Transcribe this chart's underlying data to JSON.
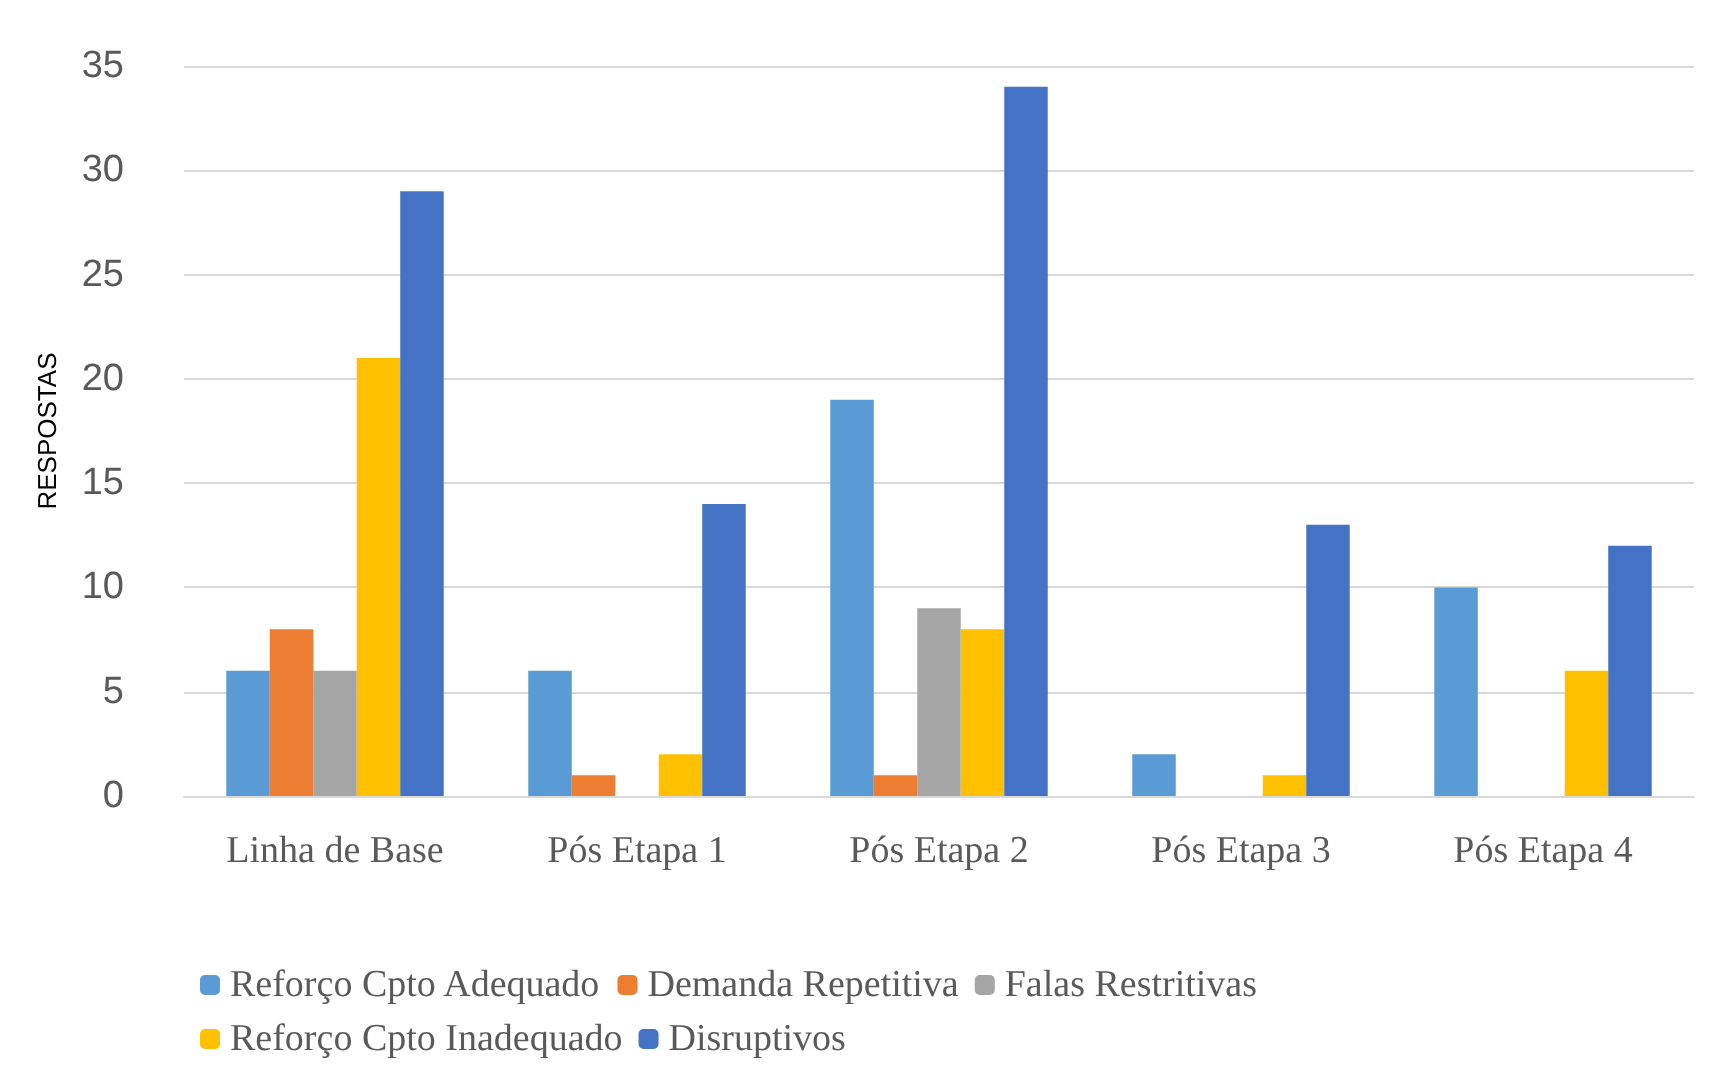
{
  "chart_data": {
    "type": "bar",
    "ylabel": "RESPOSTAS",
    "categories": [
      "Linha de Base",
      "Pós Etapa 1",
      "Pós Etapa 2",
      "Pós Etapa 3",
      "Pós Etapa 4"
    ],
    "series": [
      {
        "name": "Reforço Cpto Adequado",
        "color": "#5b9bd5",
        "values": [
          6,
          6,
          19,
          2,
          10
        ]
      },
      {
        "name": "Demanda Repetitiva",
        "color": "#ed7d31",
        "values": [
          8,
          1,
          1,
          0,
          0
        ]
      },
      {
        "name": "Falas Restritivas",
        "color": "#a5a5a5",
        "values": [
          6,
          0,
          9,
          0,
          0
        ]
      },
      {
        "name": "Reforço Cpto Inadequado",
        "color": "#ffc000",
        "values": [
          21,
          2,
          8,
          1,
          6
        ]
      },
      {
        "name": "Disruptivos",
        "color": "#4472c4",
        "values": [
          29,
          14,
          34,
          13,
          12
        ]
      }
    ],
    "ylim": [
      0,
      35
    ],
    "yticks": [
      0,
      5,
      10,
      15,
      20,
      25,
      30,
      35
    ],
    "grid": "y",
    "legend": "bottom"
  }
}
